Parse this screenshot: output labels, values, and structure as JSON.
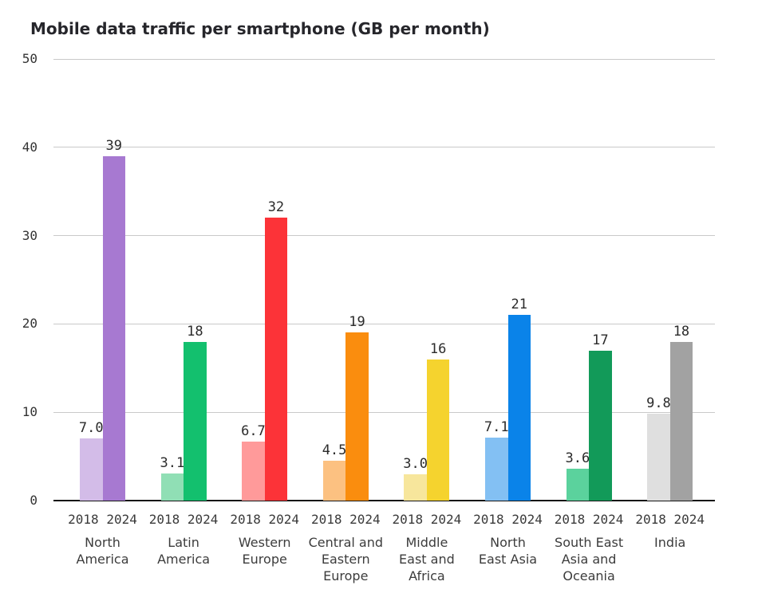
{
  "chart_data": {
    "type": "bar",
    "title": "Mobile data traffic per smartphone (GB per month)",
    "xlabel": "",
    "ylabel": "",
    "ylim": [
      0,
      50
    ],
    "yticks": [
      0,
      10,
      20,
      30,
      40,
      50
    ],
    "grid": true,
    "legend_position": "none",
    "categories": [
      "North America",
      "Latin America",
      "Western Europe",
      "Central and Eastern Europe",
      "Middle East and Africa",
      "North East Asia",
      "South East Asia and Oceania",
      "India"
    ],
    "category_label_lines": [
      [
        "North",
        "America"
      ],
      [
        "Latin",
        "America"
      ],
      [
        "Western",
        "Europe"
      ],
      [
        "Central and",
        "Eastern",
        "Europe"
      ],
      [
        "Middle",
        "East and",
        "Africa"
      ],
      [
        "North",
        "East Asia"
      ],
      [
        "South East",
        "Asia and",
        "Oceania"
      ],
      [
        "India"
      ]
    ],
    "x_tick_years": [
      "2018",
      "2024"
    ],
    "series": [
      {
        "name": "2018",
        "values": [
          7.0,
          3.1,
          6.7,
          4.5,
          3.0,
          7.1,
          3.6,
          9.8
        ],
        "value_labels": [
          "7.0",
          "3.1",
          "6.7",
          "4.5",
          "3.0",
          "7.1",
          "3.6",
          "9.8"
        ],
        "colors": [
          "#d3bce8",
          "#90dfb5",
          "#ff9a9a",
          "#fcc181",
          "#f7e69c",
          "#83c0f3",
          "#5bd29d",
          "#dfdfdf"
        ]
      },
      {
        "name": "2024",
        "values": [
          39,
          18,
          32,
          19,
          16,
          21,
          17,
          18
        ],
        "value_labels": [
          "39",
          "18",
          "32",
          "19",
          "16",
          "21",
          "17",
          "18"
        ],
        "colors": [
          "#a779d1",
          "#13c06e",
          "#fc3338",
          "#fa8d0e",
          "#f5d32e",
          "#0a83e9",
          "#129a59",
          "#a2a2a2"
        ]
      }
    ],
    "grid_color": "#c9c9c9",
    "axis_line_color": "#151515",
    "text_color": "#333333"
  }
}
